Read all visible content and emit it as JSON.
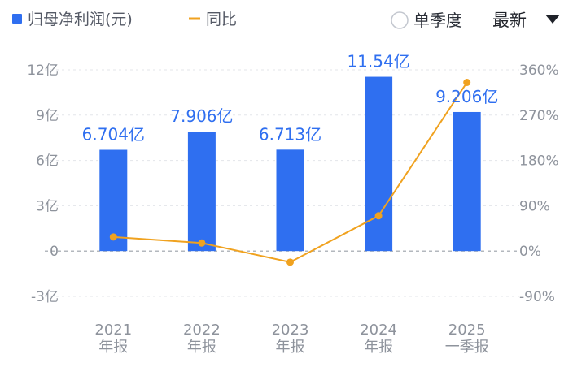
{
  "legend": {
    "bar_label": "归母净利润(元)",
    "line_label": "同比"
  },
  "controls": {
    "single_quarter_label": "单季度",
    "latest_label": "最新",
    "single_quarter_checked": false
  },
  "colors": {
    "bar": "#2f6ff0",
    "line": "#f0a21f",
    "grid": "#e3e5ea",
    "zero_line": "#9aa0a8",
    "axis_text": "#8e939c"
  },
  "chart_data": {
    "type": "bar",
    "categories": [
      "2021\n年报",
      "2022\n年报",
      "2023\n年报",
      "2024\n年报",
      "2025\n一季报"
    ],
    "series": [
      {
        "name": "归母净利润(元)",
        "type": "bar",
        "axis": "left",
        "values": [
          6.704,
          7.906,
          6.713,
          11.54,
          9.206
        ],
        "unit": "亿",
        "labels": [
          "6.704亿",
          "7.906亿",
          "6.713亿",
          "11.54亿",
          "9.206亿"
        ]
      },
      {
        "name": "同比",
        "type": "line",
        "axis": "right",
        "values": [
          28,
          16,
          -22,
          70,
          335
        ],
        "unit": "%"
      }
    ],
    "y_left": {
      "ticks": [
        -3,
        0,
        3,
        6,
        9,
        12
      ],
      "tick_labels": [
        "-3亿",
        "0",
        "3亿",
        "6亿",
        "9亿",
        "12亿"
      ],
      "range": [
        -3,
        12
      ]
    },
    "y_right": {
      "ticks": [
        -90,
        0,
        90,
        180,
        270,
        360
      ],
      "tick_labels": [
        "-90%",
        "0%",
        "90%",
        "180%",
        "270%",
        "360%"
      ],
      "range": [
        -90,
        360
      ]
    },
    "grid": true,
    "legend_position": "top-left"
  }
}
